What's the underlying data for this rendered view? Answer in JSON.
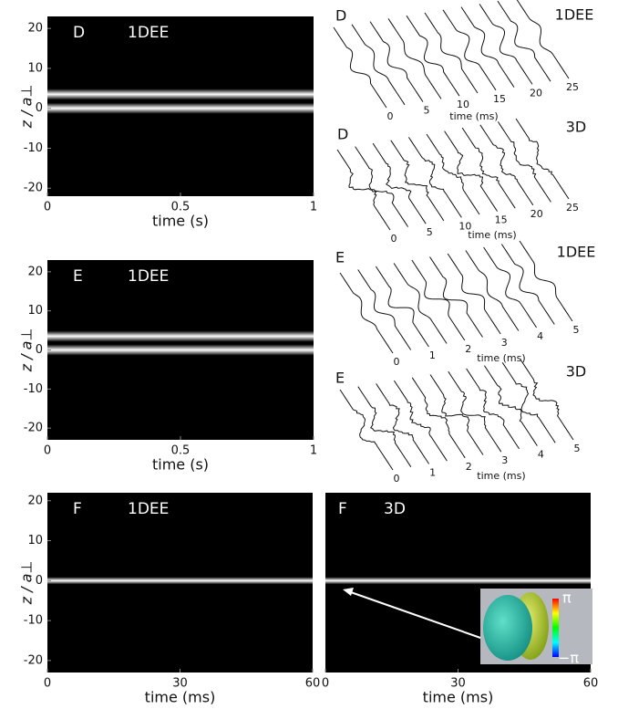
{
  "chart_data": [
    {
      "type": "heatmap",
      "panel": "D",
      "label": "1DEE",
      "xlabel": "time (s)",
      "ylabel": "z / a⊥",
      "xlim": [
        0,
        1
      ],
      "ylim": [
        -22,
        23
      ],
      "xticks": [
        0,
        0.5,
        1
      ],
      "yticks": [
        20,
        10,
        0,
        -10,
        -20
      ],
      "peaks": [
        3.5,
        0
      ]
    },
    {
      "type": "waterfall",
      "panel": "D",
      "label": "1DEE",
      "xlabel": "time (ms)",
      "xlim": [
        0,
        25
      ],
      "xticks": [
        0,
        5,
        10,
        15,
        20,
        25
      ]
    },
    {
      "type": "waterfall",
      "panel": "D",
      "label": "3D",
      "xlabel": "time (ms)",
      "xlim": [
        0,
        25
      ],
      "xticks": [
        0,
        5,
        10,
        15,
        20,
        25
      ]
    },
    {
      "type": "heatmap",
      "panel": "E",
      "label": "1DEE",
      "xlabel": "time (s)",
      "ylabel": "z / a⊥",
      "xlim": [
        0,
        1
      ],
      "ylim": [
        -23,
        23
      ],
      "xticks": [
        0,
        0.5,
        1
      ],
      "yticks": [
        20,
        10,
        0,
        -10,
        -20
      ],
      "peaks": [
        3.5,
        0
      ]
    },
    {
      "type": "waterfall",
      "panel": "E",
      "label": "1DEE",
      "xlabel": "time (ms)",
      "xlim": [
        0,
        5
      ],
      "xticks": [
        0,
        1,
        2,
        3,
        4,
        5
      ]
    },
    {
      "type": "waterfall",
      "panel": "E",
      "label": "3D",
      "xlabel": "time (ms)",
      "xlim": [
        0,
        5
      ],
      "xticks": [
        0,
        1,
        2,
        3,
        4,
        5
      ]
    },
    {
      "type": "heatmap",
      "panel": "F",
      "label": "1DEE",
      "xlabel": "time (ms)",
      "ylabel": "z / a⊥",
      "xlim": [
        0,
        60
      ],
      "ylim": [
        -23,
        22
      ],
      "xticks": [
        0,
        30,
        60
      ],
      "yticks": [
        20,
        10,
        0,
        -10,
        -20
      ],
      "peaks": [
        0
      ]
    },
    {
      "type": "heatmap",
      "panel": "F",
      "label": "3D",
      "xlabel": "time (ms)",
      "xlim": [
        0,
        60
      ],
      "ylim": [
        -23,
        22
      ],
      "xticks": [
        0,
        30,
        60
      ],
      "peaks": [
        0
      ],
      "inset": {
        "colorbar_labels": [
          "π",
          "−π"
        ]
      }
    }
  ]
}
